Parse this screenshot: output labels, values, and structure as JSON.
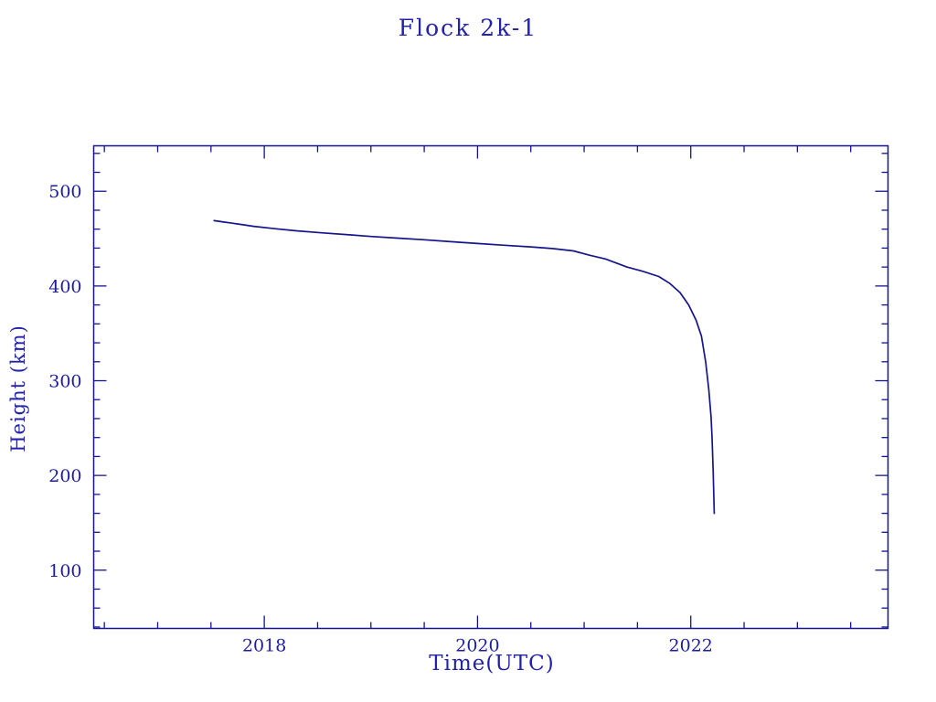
{
  "chart_data": {
    "type": "line",
    "title": "Flock 2k-1",
    "xlabel": "Time(UTC)",
    "ylabel": "Height (km)",
    "xlim": [
      2016.4,
      2023.85
    ],
    "ylim": [
      38.5,
      548
    ],
    "x_major_ticks": [
      2018,
      2020,
      2022
    ],
    "x_tick_labels": [
      "2018",
      "2020",
      "2022"
    ],
    "x_minor_step": 0.5,
    "y_major_ticks": [
      100,
      200,
      300,
      400,
      500
    ],
    "y_tick_labels": [
      "100",
      "200",
      "300",
      "400",
      "500"
    ],
    "y_minor_step": 20,
    "grid": false,
    "legend": null,
    "line_color": "#15158c",
    "text_color": "#2222aa",
    "series": [
      {
        "name": "Flock 2k-1 height",
        "points": [
          [
            2017.53,
            469
          ],
          [
            2017.62,
            467.5
          ],
          [
            2017.75,
            465.5
          ],
          [
            2017.9,
            463
          ],
          [
            2018.1,
            460.5
          ],
          [
            2018.3,
            458.3
          ],
          [
            2018.55,
            456
          ],
          [
            2018.8,
            454
          ],
          [
            2019.0,
            452.3
          ],
          [
            2019.25,
            450.5
          ],
          [
            2019.5,
            448.8
          ],
          [
            2019.75,
            446.8
          ],
          [
            2020.0,
            444.8
          ],
          [
            2020.25,
            443
          ],
          [
            2020.5,
            441.3
          ],
          [
            2020.7,
            439.5
          ],
          [
            2020.9,
            437
          ],
          [
            2021.05,
            432.5
          ],
          [
            2021.2,
            428.5
          ],
          [
            2021.4,
            420
          ],
          [
            2021.55,
            415.5
          ],
          [
            2021.7,
            410
          ],
          [
            2021.8,
            403
          ],
          [
            2021.9,
            393
          ],
          [
            2021.98,
            380
          ],
          [
            2022.05,
            364
          ],
          [
            2022.1,
            347
          ],
          [
            2022.14,
            320
          ],
          [
            2022.17,
            290
          ],
          [
            2022.19,
            262
          ],
          [
            2022.2,
            240
          ],
          [
            2022.21,
            205
          ],
          [
            2022.22,
            160
          ]
        ]
      }
    ]
  }
}
